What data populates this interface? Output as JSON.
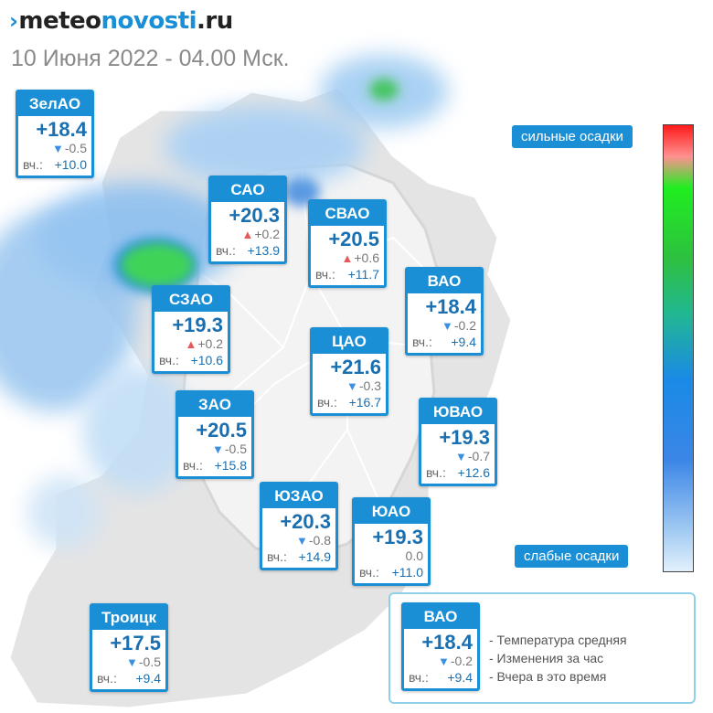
{
  "header": {
    "logo_mark": "›",
    "logo_part1": "meteo",
    "logo_part2": "novosti",
    "logo_part3": ".ru",
    "datetime": "10 Июня 2022 - 04.00 Мск."
  },
  "districts": {
    "zelao": {
      "name": "ЗелАО",
      "temp": "+18.4",
      "trend": "down",
      "change": "-0.5",
      "yesterday_label": "вч.:",
      "yesterday": "+10.0"
    },
    "sao": {
      "name": "САО",
      "temp": "+20.3",
      "trend": "up",
      "change": "+0.2",
      "yesterday_label": "вч.:",
      "yesterday": "+13.9"
    },
    "svao": {
      "name": "СВАО",
      "temp": "+20.5",
      "trend": "up",
      "change": "+0.6",
      "yesterday_label": "вч.:",
      "yesterday": "+11.7"
    },
    "szao": {
      "name": "СЗАО",
      "temp": "+19.3",
      "trend": "up",
      "change": "+0.2",
      "yesterday_label": "вч.:",
      "yesterday": "+10.6"
    },
    "vao": {
      "name": "ВАО",
      "temp": "+18.4",
      "trend": "down",
      "change": "-0.2",
      "yesterday_label": "вч.:",
      "yesterday": "+9.4"
    },
    "cao": {
      "name": "ЦАО",
      "temp": "+21.6",
      "trend": "down",
      "change": "-0.3",
      "yesterday_label": "вч.:",
      "yesterday": "+16.7"
    },
    "zao": {
      "name": "ЗАО",
      "temp": "+20.5",
      "trend": "down",
      "change": "-0.5",
      "yesterday_label": "вч.:",
      "yesterday": "+15.8"
    },
    "yuvao": {
      "name": "ЮВАО",
      "temp": "+19.3",
      "trend": "down",
      "change": "-0.7",
      "yesterday_label": "вч.:",
      "yesterday": "+12.6"
    },
    "yuzao": {
      "name": "ЮЗАО",
      "temp": "+20.3",
      "trend": "down",
      "change": "-0.8",
      "yesterday_label": "вч.:",
      "yesterday": "+14.9"
    },
    "yuao": {
      "name": "ЮАО",
      "temp": "+19.3",
      "trend": "none",
      "change": "0.0",
      "yesterday_label": "вч.:",
      "yesterday": "+11.0"
    },
    "troitsk": {
      "name": "Троицк",
      "temp": "+17.5",
      "trend": "down",
      "change": "-0.5",
      "yesterday_label": "вч.:",
      "yesterday": "+9.4"
    }
  },
  "legend": {
    "sample": {
      "name": "ВАО",
      "temp": "+18.4",
      "trend": "down",
      "change": "-0.2",
      "yesterday_label": "вч.:",
      "yesterday": "+9.4"
    },
    "line1": "- Температура средняя",
    "line2": "- Изменения за час",
    "line3": "- Вчера в это время"
  },
  "scale": {
    "top_label": "сильные осадки",
    "bottom_label": "слабые осадки"
  },
  "colors": {
    "accent": "#1a8fd6",
    "trend_down": "#3a8fe0",
    "trend_up": "#e85a5a"
  }
}
